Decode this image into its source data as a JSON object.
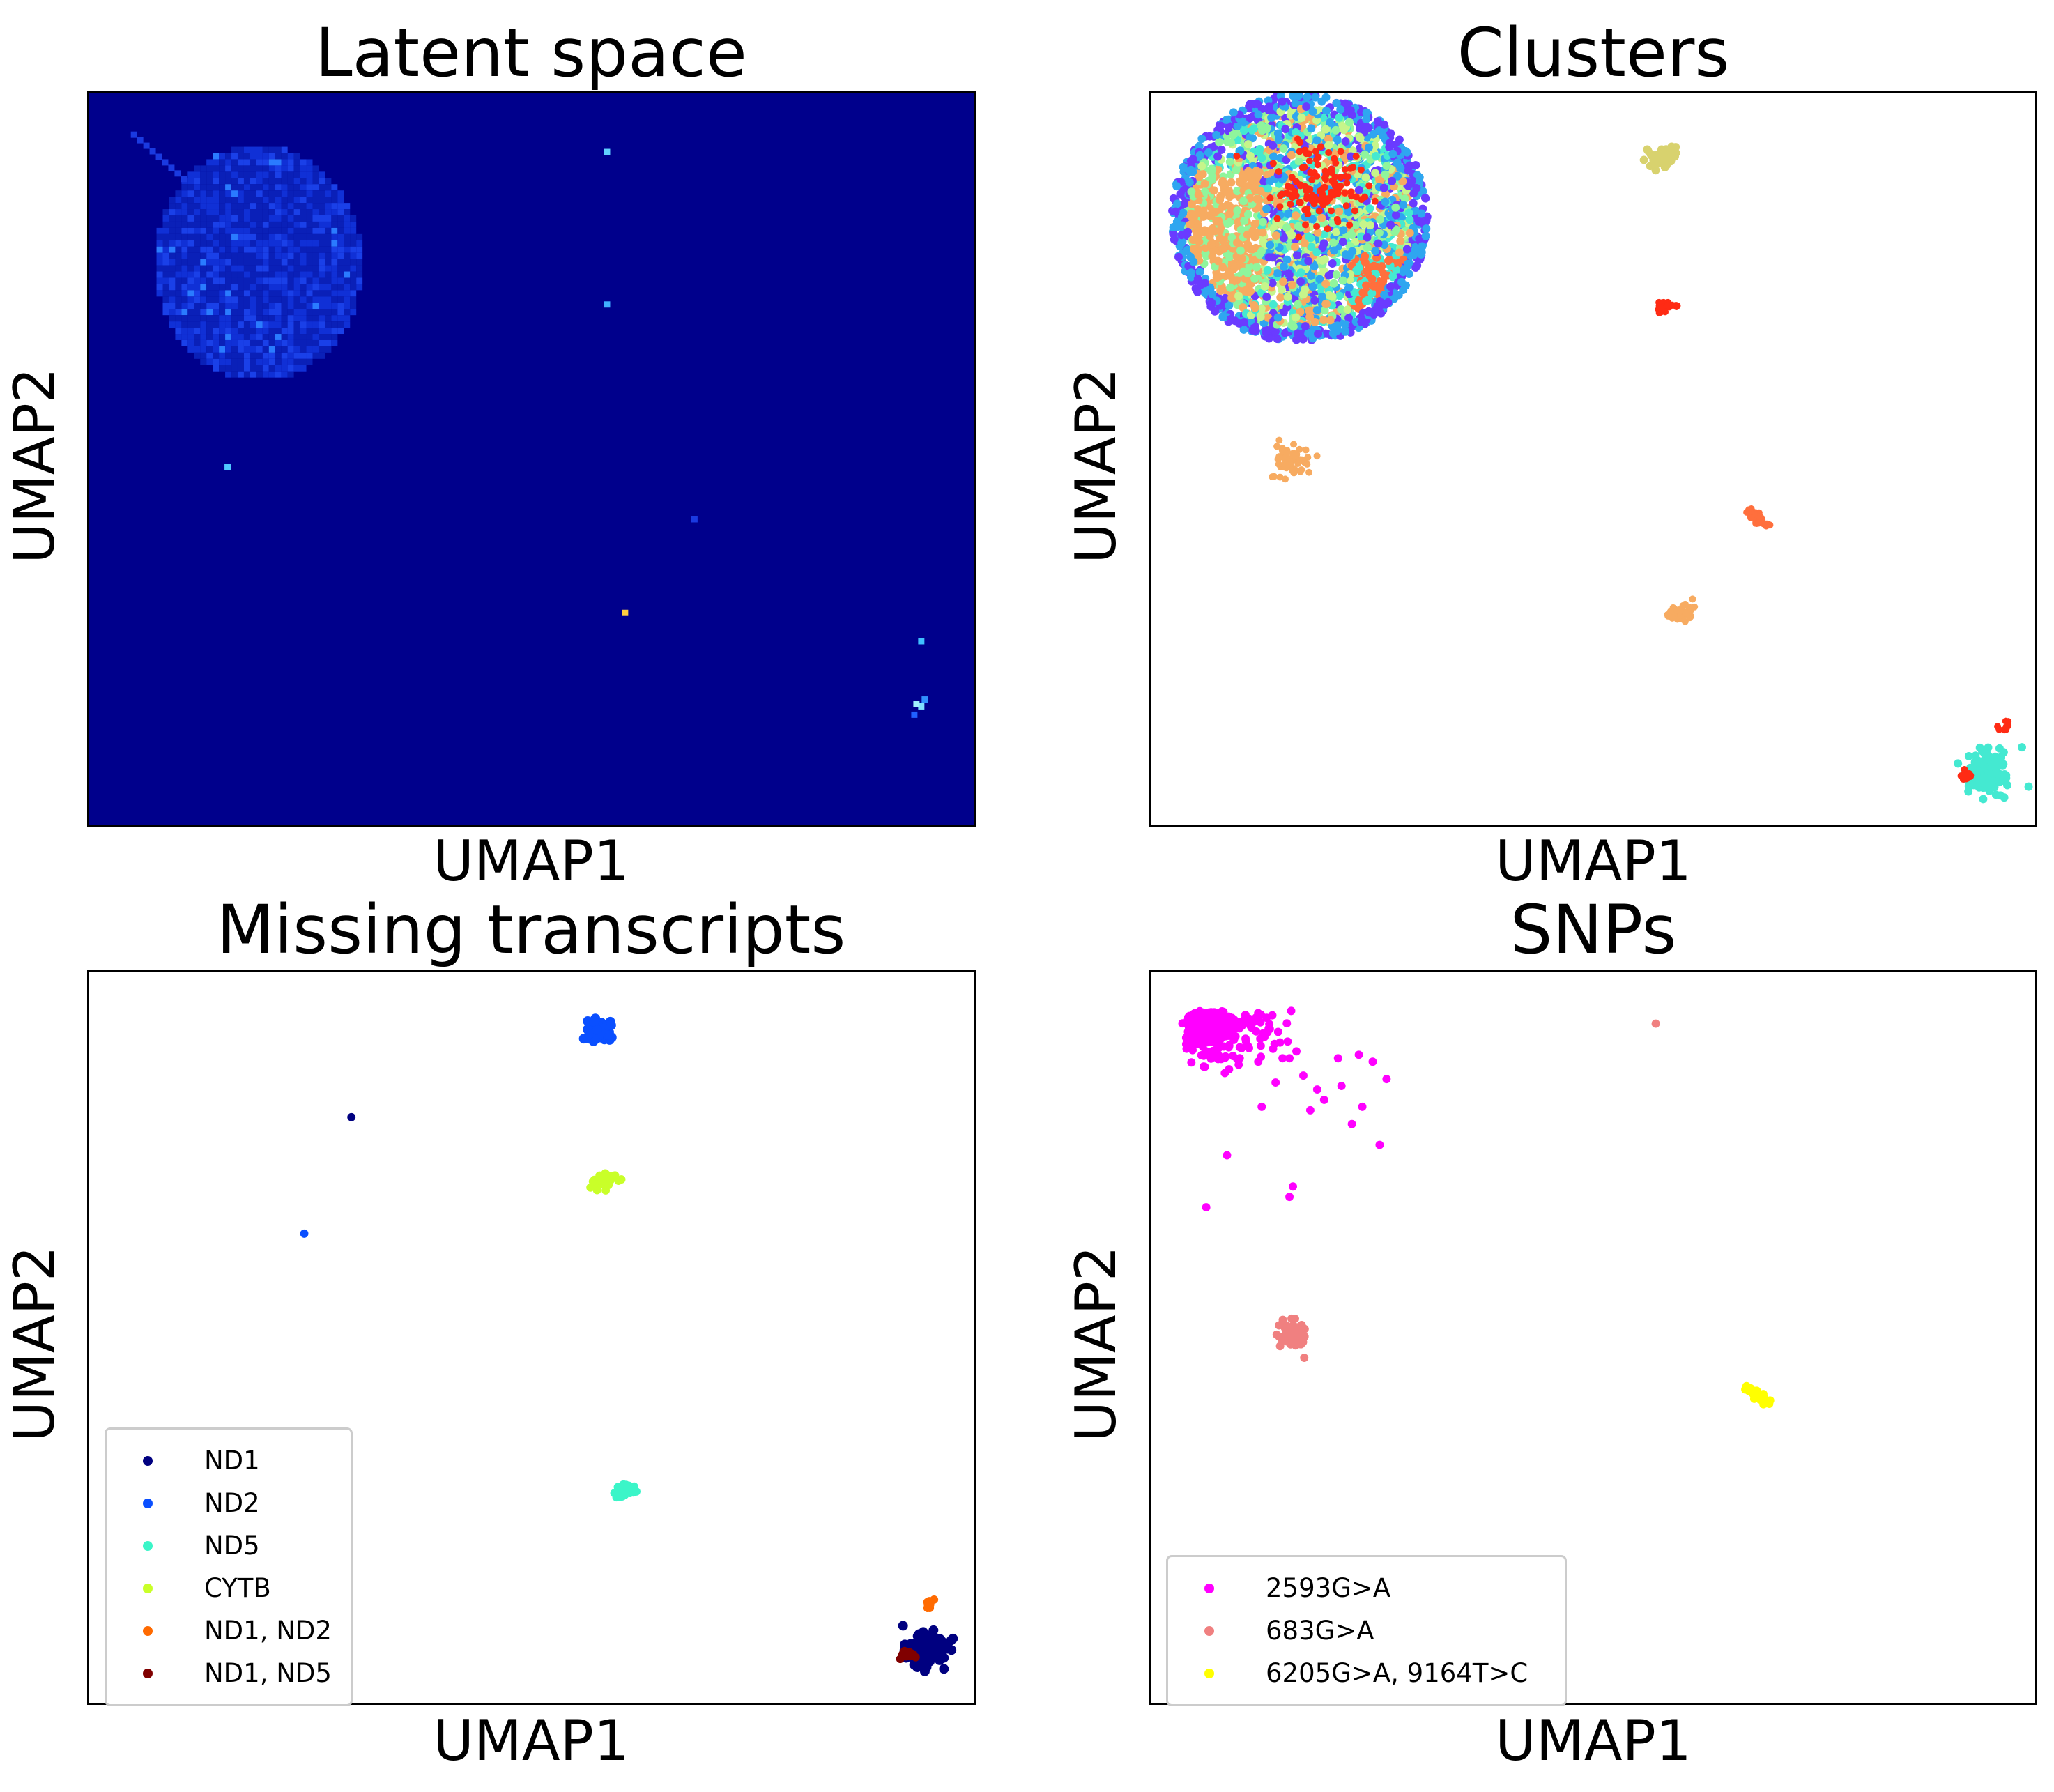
{
  "chart_data": [
    {
      "type": "heatmap",
      "title": "Latent space",
      "xlabel": "UMAP1",
      "ylabel": "UMAP2",
      "ticks": "none",
      "colormap": "jet",
      "background_color": "#00008c"
    },
    {
      "type": "scatter",
      "title": "Clusters",
      "xlabel": "UMAP1",
      "ylabel": "UMAP2",
      "ticks": "none",
      "legend": "none",
      "colormap": "rainbow"
    },
    {
      "type": "scatter",
      "title": "Missing transcripts",
      "xlabel": "UMAP1",
      "ylabel": "UMAP2",
      "ticks": "none",
      "legend": "lower-left",
      "series": [
        {
          "name": "ND1",
          "color": "#000080"
        },
        {
          "name": "ND2",
          "color": "#0a4fff"
        },
        {
          "name": "ND5",
          "color": "#3bf5c8"
        },
        {
          "name": "CYTB",
          "color": "#c9ff29"
        },
        {
          "name": "ND1, ND2",
          "color": "#ff6a00"
        },
        {
          "name": "ND1, ND5",
          "color": "#800000"
        }
      ]
    },
    {
      "type": "scatter",
      "title": "SNPs",
      "xlabel": "UMAP1",
      "ylabel": "UMAP2",
      "ticks": "none",
      "legend": "lower-left",
      "series": [
        {
          "name": "2593G>A",
          "color": "#ff00ff"
        },
        {
          "name": "683G>A",
          "color": "#f08080"
        },
        {
          "name": "6205G>A, 9164T>C",
          "color": "#ffff00"
        }
      ]
    }
  ]
}
